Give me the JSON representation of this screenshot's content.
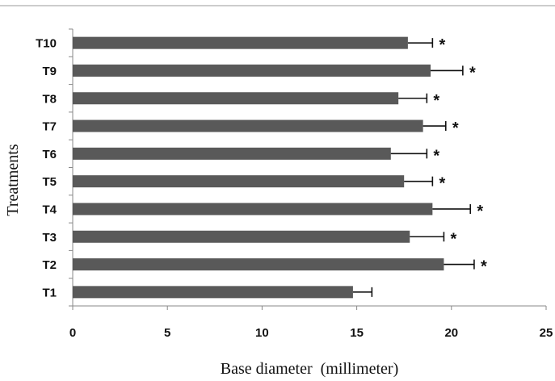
{
  "chart_data": {
    "type": "bar",
    "orientation": "horizontal",
    "categories": [
      "T1",
      "T2",
      "T3",
      "T4",
      "T5",
      "T6",
      "T7",
      "T8",
      "T9",
      "T10"
    ],
    "values": [
      14.8,
      19.6,
      17.8,
      19.0,
      17.5,
      16.8,
      18.5,
      17.2,
      18.9,
      17.7
    ],
    "error": [
      1.0,
      1.6,
      1.8,
      2.0,
      1.5,
      1.9,
      1.2,
      1.5,
      1.7,
      1.3
    ],
    "significance": [
      "",
      "*",
      "*",
      "*",
      "*",
      "*",
      "*",
      "*",
      "*",
      "*"
    ],
    "xlabel": "Base diameter  (millimeter)",
    "ylabel": "Treatments",
    "xlim": [
      0,
      25
    ],
    "xticks": [
      "0",
      "5",
      "10",
      "15",
      "20",
      "25"
    ],
    "grid": false,
    "colors": {
      "bar": "#595959",
      "error_bar": "#111111"
    }
  }
}
